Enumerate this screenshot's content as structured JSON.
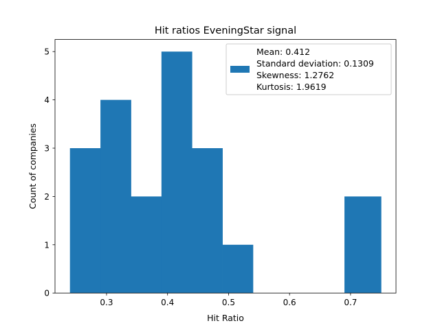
{
  "chart_data": {
    "type": "bar",
    "title": "Hit ratios EveningStar signal",
    "xlabel": "Hit Ratio",
    "ylabel": "Count of companies",
    "xlim": [
      0.2155,
      0.7745
    ],
    "ylim": [
      0,
      5.25
    ],
    "xticks": [
      0.3,
      0.4,
      0.5,
      0.6,
      0.7
    ],
    "xtick_labels": [
      "0.3",
      "0.4",
      "0.5",
      "0.6",
      "0.7"
    ],
    "yticks": [
      0,
      1,
      2,
      3,
      4,
      5
    ],
    "ytick_labels": [
      "0",
      "1",
      "2",
      "3",
      "4",
      "5"
    ],
    "bin_edges": [
      0.24,
      0.29,
      0.34,
      0.39,
      0.44,
      0.49,
      0.54,
      0.59,
      0.64,
      0.69,
      0.75
    ],
    "counts": [
      3,
      4,
      2,
      5,
      3,
      1,
      0,
      0,
      0,
      2
    ],
    "bar_color": "#1f77b4",
    "grid": false,
    "legend": {
      "placement": "upper right",
      "entries": [
        "Mean: 0.412",
        "Standard deviation: 0.1309",
        "Skewness: 1.2762",
        "Kurtosis: 1.9619"
      ]
    }
  }
}
